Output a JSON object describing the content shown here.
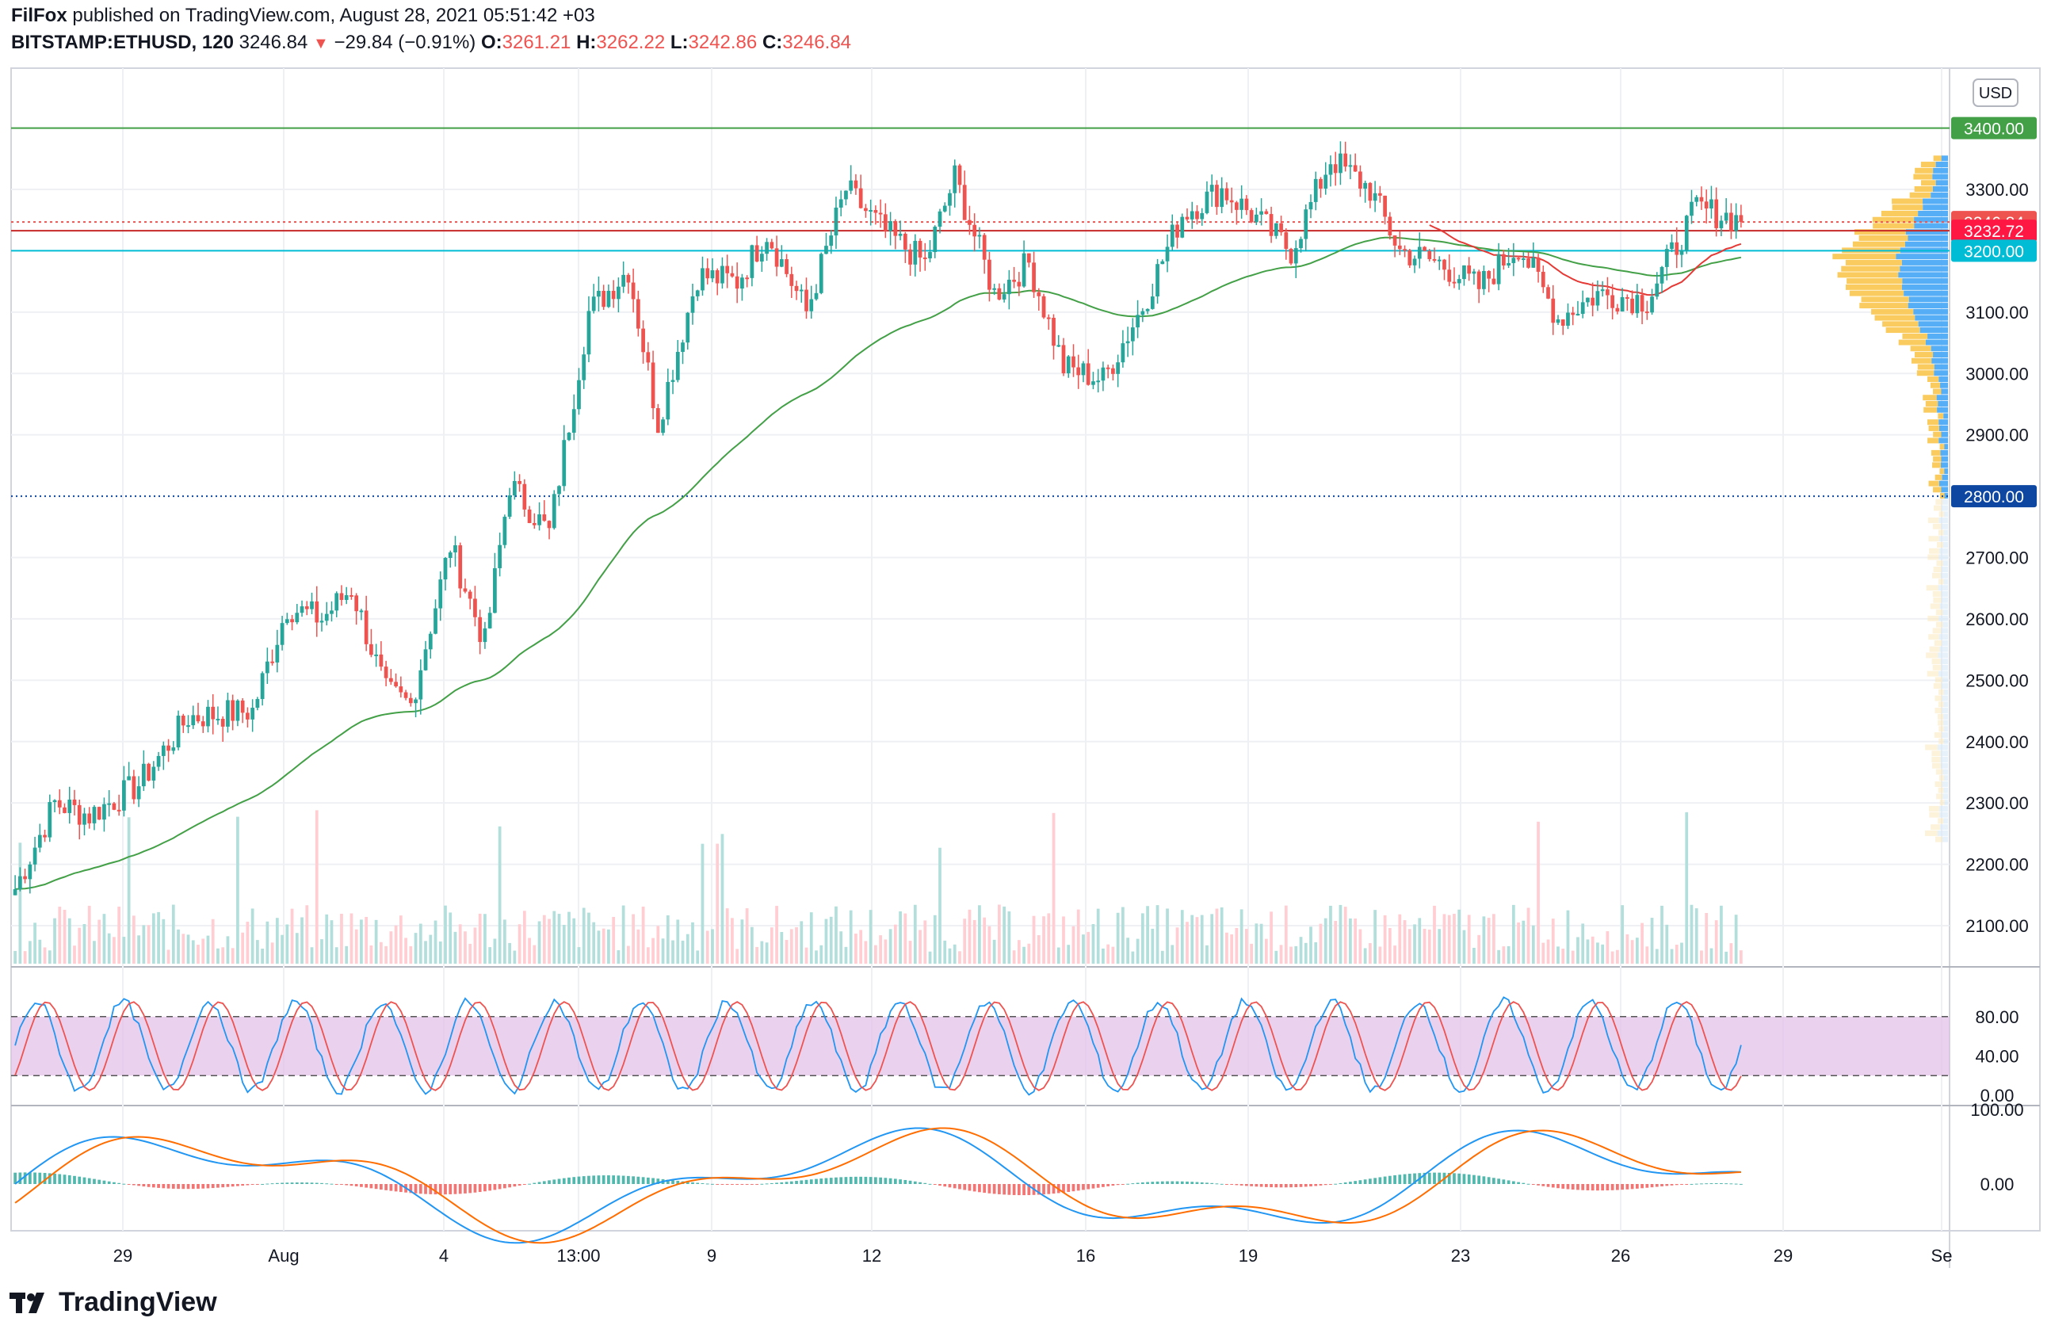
{
  "header": {
    "author": "FilFox",
    "published_text": "published on TradingView.com, August 28, 2021 05:51:42 +03",
    "symbol": "BITSTAMP:ETHUSD, 120",
    "last": "3246.84",
    "change": "−29.84 (−0.91%)",
    "o_label": "O:",
    "o_value": "3261.21",
    "h_label": "H:",
    "h_value": "3262.22",
    "l_label": "L:",
    "l_value": "3242.86",
    "c_label": "C:",
    "c_value": "3246.84"
  },
  "footer": {
    "brand": "TradingView"
  },
  "colors": {
    "up": "#26a69a",
    "down": "#ef5350",
    "ma_green": "#43a047",
    "ma_red": "#e53935",
    "level_green": "#43a047",
    "level_cyan": "#00bcd4",
    "level_navy": "#0d47a1",
    "stoch_band": "#e1bee7",
    "macd_blue": "#2196f3",
    "macd_orange": "#ff6d00"
  },
  "chart_data": [
    {
      "type": "candlestick",
      "currency": "USD",
      "ylim": [
        2040,
        3430
      ],
      "y_ticks": [
        "3300.00",
        "3100.00",
        "3000.00",
        "2900.00",
        "2700.00",
        "2600.00",
        "2500.00",
        "2400.00",
        "2300.00",
        "2200.00",
        "2100.00"
      ],
      "x_ticks": [
        "29",
        "Aug",
        "4",
        "13:00",
        "9",
        "12",
        "16",
        "19",
        "23",
        "26",
        "29",
        "Se"
      ],
      "price_labels": [
        {
          "value": "3400.00",
          "color": "#43a047",
          "y": 3400
        },
        {
          "value": "3246.84",
          "color": "#ef5350",
          "y": 3246.84
        },
        {
          "value": "3232.72",
          "color": "#ff1744",
          "y": 3232.72
        },
        {
          "value": "3200.00",
          "color": "#00bcd4",
          "y": 3200
        },
        {
          "value": "2800.00",
          "color": "#0d47a1",
          "y": 2800
        }
      ],
      "horizontal_levels": [
        3400,
        3232.72,
        3200,
        2800
      ],
      "price_path": {
        "x_index": [
          0,
          8,
          15,
          25,
          35,
          48,
          55,
          62,
          68,
          75,
          80,
          88,
          95,
          100,
          108,
          116,
          124,
          130,
          138,
          146,
          152,
          160,
          168,
          176,
          184,
          190,
          198,
          205,
          212,
          220,
          228,
          236,
          244,
          250,
          258,
          266,
          274,
          280,
          288,
          296,
          304,
          312,
          320,
          330,
          340,
          350
        ],
        "close": [
          2160,
          2300,
          2280,
          2330,
          2440,
          2450,
          2620,
          2600,
          2650,
          2480,
          2460,
          2720,
          2560,
          2820,
          2740,
          3100,
          3170,
          2920,
          3160,
          3150,
          3230,
          3100,
          3300,
          3230,
          3180,
          3320,
          3130,
          3180,
          3010,
          2990,
          3110,
          3260,
          3300,
          3260,
          3200,
          3350,
          3300,
          3200,
          3180,
          3140,
          3210,
          3090,
          3130,
          3120,
          3270,
          3247
        ]
      },
      "candles_count": 350,
      "ma_slow_start": 2160,
      "ma_fast_end": 3190
    },
    {
      "type": "line",
      "name": "Stochastic",
      "ylim": [
        0,
        100
      ],
      "y_ticks": [
        "80.00",
        "40.00",
        "0.00"
      ],
      "band": [
        20,
        80
      ]
    },
    {
      "type": "line",
      "name": "MACD",
      "y_ticks": [
        "100.00",
        "0.00"
      ]
    }
  ]
}
